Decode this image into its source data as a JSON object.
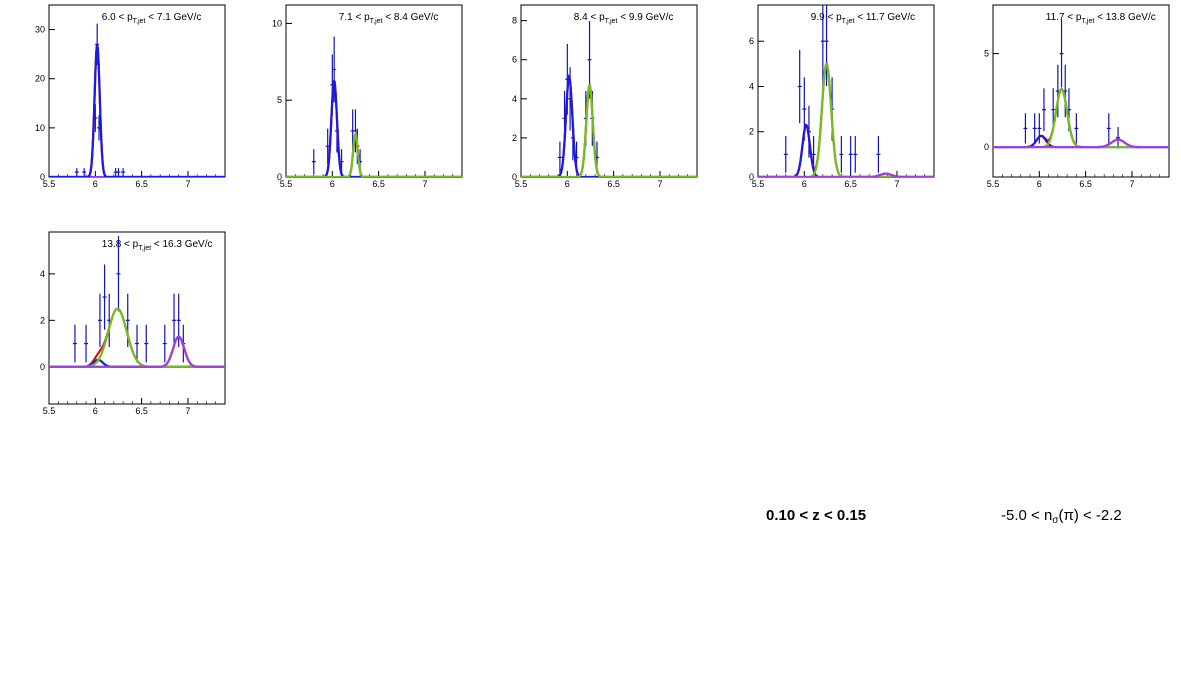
{
  "figure": {
    "caption_z": "0.10 < z < 0.15",
    "caption_nsigma_pre": "-5.0 < n",
    "caption_nsigma_sub": "σ",
    "caption_nsigma_post": "(π) < -2.2"
  },
  "colors": {
    "data": "#1414b4",
    "fit_total": "#e01010",
    "fit_pion": "#1a1ae6",
    "fit_kaon": "#70c020",
    "fit_proton": "#a040e0",
    "baseline": "#8a3ce0"
  },
  "chart_data": [
    {
      "type": "histogram-fit",
      "label": "6.0 < p_{T,jet} < 7.1 GeV/c",
      "xlim": [
        5.5,
        7.4
      ],
      "xticks": [
        "5.5",
        "6",
        "6.5",
        "7"
      ],
      "ylim": [
        0,
        35
      ],
      "yticks": [
        0,
        10,
        20,
        30
      ],
      "peaks": [
        {
          "component": "pion",
          "mu": 6.02,
          "sigma": 0.028,
          "amp": 27
        }
      ],
      "points": [
        [
          5.8,
          1
        ],
        [
          5.88,
          1
        ],
        [
          6.0,
          12
        ],
        [
          6.02,
          27
        ],
        [
          6.04,
          10
        ],
        [
          6.22,
          1
        ],
        [
          6.25,
          1
        ],
        [
          6.3,
          1
        ]
      ]
    },
    {
      "type": "histogram-fit",
      "label": "7.1 < p_{T,jet} < 8.4 GeV/c",
      "xlim": [
        5.5,
        7.4
      ],
      "xticks": [
        "5.5",
        "6",
        "6.5",
        "7"
      ],
      "ylim": [
        0,
        11.2
      ],
      "yticks": [
        0,
        5,
        10
      ],
      "peaks": [
        {
          "component": "pion",
          "mu": 6.02,
          "sigma": 0.03,
          "amp": 6.3
        },
        {
          "component": "kaon",
          "mu": 6.25,
          "sigma": 0.025,
          "amp": 2.8
        }
      ],
      "points": [
        [
          5.8,
          1
        ],
        [
          5.95,
          2
        ],
        [
          6.0,
          6
        ],
        [
          6.02,
          7
        ],
        [
          6.05,
          3
        ],
        [
          6.1,
          1
        ],
        [
          6.22,
          3
        ],
        [
          6.25,
          3
        ],
        [
          6.27,
          2
        ],
        [
          6.3,
          1
        ]
      ]
    },
    {
      "type": "histogram-fit",
      "label": "8.4 < p_{T,jet} < 9.9 GeV/c",
      "xlim": [
        5.5,
        7.4
      ],
      "xticks": [
        "5.5",
        "6",
        "6.5",
        "7"
      ],
      "ylim": [
        0,
        8.8
      ],
      "yticks": [
        0,
        2,
        4,
        6,
        8
      ],
      "peaks": [
        {
          "component": "pion",
          "mu": 6.02,
          "sigma": 0.035,
          "amp": 5.1
        },
        {
          "component": "kaon",
          "mu": 6.24,
          "sigma": 0.035,
          "amp": 4.7
        }
      ],
      "points": [
        [
          5.92,
          1
        ],
        [
          5.97,
          3
        ],
        [
          6.0,
          5
        ],
        [
          6.03,
          4
        ],
        [
          6.06,
          2
        ],
        [
          6.1,
          1
        ],
        [
          6.2,
          3
        ],
        [
          6.24,
          6
        ],
        [
          6.27,
          3
        ],
        [
          6.32,
          1
        ]
      ]
    },
    {
      "type": "histogram-fit",
      "label": "9.9 < p_{T,jet} < 11.7 GeV/c",
      "xlim": [
        5.5,
        7.4
      ],
      "xticks": [
        "5.5",
        "6",
        "6.5",
        "7"
      ],
      "ylim": [
        0,
        7.6
      ],
      "yticks": [
        0,
        2,
        4,
        6
      ],
      "peaks": [
        {
          "component": "pion",
          "mu": 6.02,
          "sigma": 0.04,
          "amp": 2.3
        },
        {
          "component": "kaon",
          "mu": 6.24,
          "sigma": 0.05,
          "amp": 5.0
        },
        {
          "component": "proton",
          "mu": 6.88,
          "sigma": 0.06,
          "amp": 0.15
        }
      ],
      "points": [
        [
          5.8,
          1
        ],
        [
          5.95,
          4
        ],
        [
          6.0,
          3
        ],
        [
          6.05,
          2
        ],
        [
          6.1,
          1
        ],
        [
          6.2,
          6
        ],
        [
          6.24,
          6
        ],
        [
          6.3,
          3
        ],
        [
          6.4,
          1
        ],
        [
          6.5,
          1
        ],
        [
          6.55,
          1
        ],
        [
          6.8,
          1
        ]
      ]
    },
    {
      "type": "histogram-fit",
      "label": "11.7 < p_{T,jet} < 13.8 GeV/c",
      "xlim": [
        5.5,
        7.4
      ],
      "xticks": [
        "5.5",
        "6",
        "6.5",
        "7"
      ],
      "ylim": [
        -1.6,
        7.6
      ],
      "yticks": [
        0,
        5
      ],
      "peaks": [
        {
          "component": "pion",
          "mu": 6.02,
          "sigma": 0.05,
          "amp": 0.6
        },
        {
          "component": "kaon",
          "mu": 6.24,
          "sigma": 0.06,
          "amp": 3.1
        },
        {
          "component": "proton",
          "mu": 6.85,
          "sigma": 0.07,
          "amp": 0.4
        }
      ],
      "points": [
        [
          5.85,
          1
        ],
        [
          5.95,
          1
        ],
        [
          6.0,
          1
        ],
        [
          6.05,
          2
        ],
        [
          6.15,
          2
        ],
        [
          6.2,
          3
        ],
        [
          6.24,
          5
        ],
        [
          6.28,
          3
        ],
        [
          6.32,
          2
        ],
        [
          6.4,
          1
        ],
        [
          6.75,
          1
        ],
        [
          6.85,
          0.5
        ]
      ]
    },
    {
      "type": "histogram-fit",
      "label": "13.8 < p_{T,jet} < 16.3 GeV/c",
      "xlim": [
        5.5,
        7.4
      ],
      "xticks": [
        "5.5",
        "6",
        "6.5",
        "7"
      ],
      "ylim": [
        -1.6,
        5.8
      ],
      "yticks": [
        0,
        2,
        4
      ],
      "peaks": [
        {
          "component": "pion",
          "mu": 6.03,
          "sigma": 0.05,
          "amp": 0.3
        },
        {
          "component": "kaon",
          "mu": 6.24,
          "sigma": 0.1,
          "amp": 2.5
        },
        {
          "component": "proton",
          "mu": 6.9,
          "sigma": 0.06,
          "amp": 1.3
        }
      ],
      "points": [
        [
          5.78,
          1
        ],
        [
          5.9,
          1
        ],
        [
          6.05,
          2
        ],
        [
          6.1,
          3
        ],
        [
          6.15,
          2
        ],
        [
          6.25,
          4
        ],
        [
          6.35,
          2
        ],
        [
          6.45,
          1
        ],
        [
          6.55,
          1
        ],
        [
          6.75,
          1
        ],
        [
          6.85,
          2
        ],
        [
          6.9,
          2
        ],
        [
          6.95,
          1
        ]
      ]
    }
  ]
}
